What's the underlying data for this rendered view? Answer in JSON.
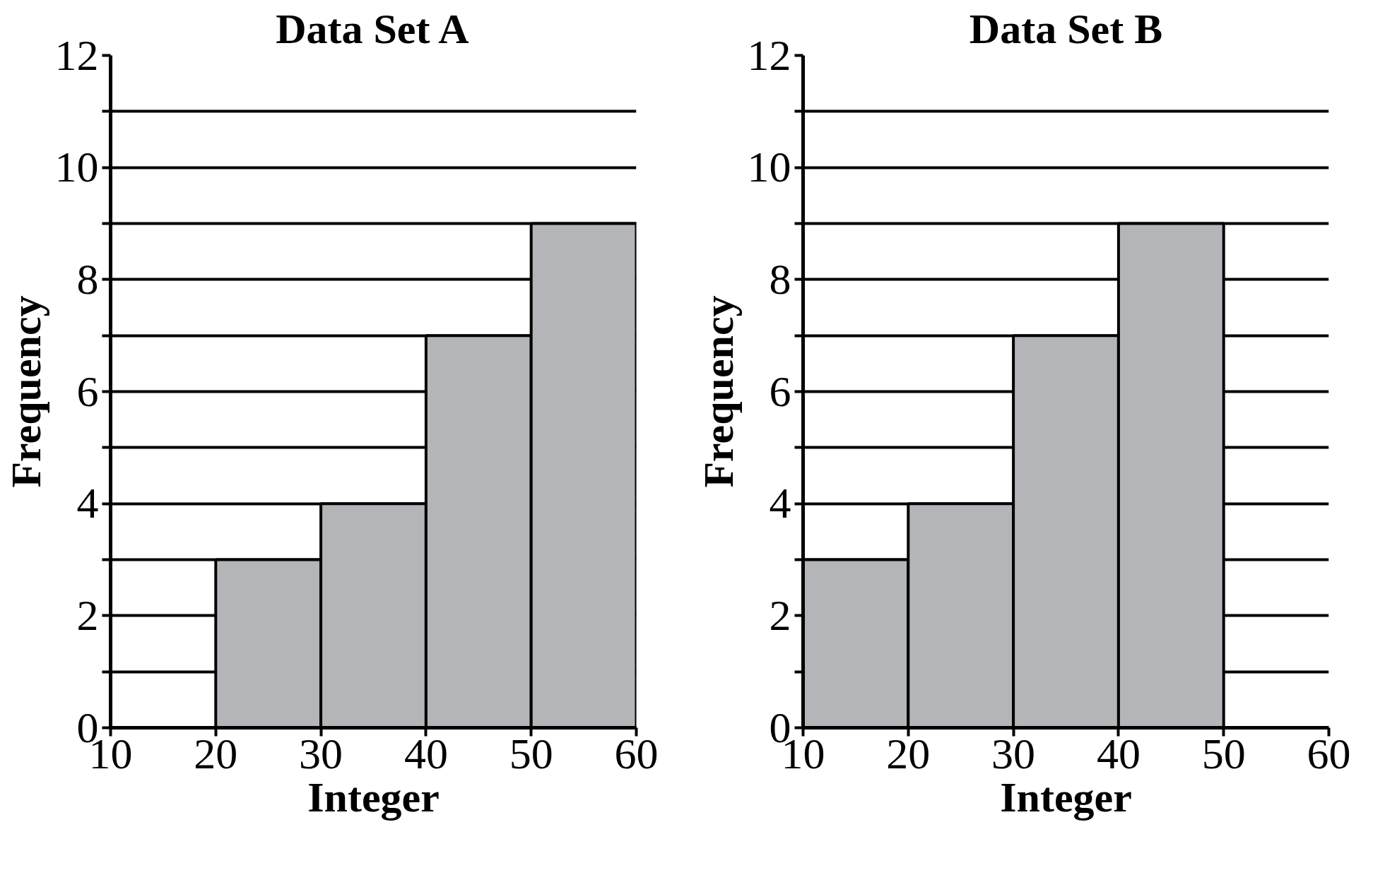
{
  "chart_data": [
    {
      "type": "histogram",
      "title": "Data Set A",
      "xlabel": "Integer",
      "ylabel": "Frequency",
      "bins": [
        10,
        20,
        30,
        40,
        50,
        60
      ],
      "values": [
        0,
        3,
        4,
        7,
        9
      ],
      "color": "#b4b5b9",
      "xlim": [
        10,
        60
      ],
      "xticks": [
        10,
        20,
        30,
        40,
        50,
        60
      ],
      "ylim": [
        0,
        12
      ],
      "yticks": [
        0,
        {
          "value": 1,
          "label": null
        },
        2,
        {
          "value": 3,
          "label": null
        },
        4,
        {
          "value": 5,
          "label": null
        },
        6,
        {
          "value": 7,
          "label": null
        },
        8,
        {
          "value": 9,
          "label": null
        },
        10,
        {
          "value": 11,
          "label": null
        },
        12
      ],
      "grid": "y"
    },
    {
      "type": "histogram",
      "title": "Data Set B",
      "xlabel": "Integer",
      "ylabel": "Frequency",
      "bins": [
        10,
        20,
        30,
        40,
        50,
        60
      ],
      "values": [
        3,
        4,
        7,
        9,
        0
      ],
      "color": "#b4b5b9",
      "xlim": [
        10,
        60
      ],
      "xticks": [
        10,
        20,
        30,
        40,
        50,
        60
      ],
      "ylim": [
        0,
        12
      ],
      "yticks": [
        0,
        {
          "value": 1,
          "label": null
        },
        2,
        {
          "value": 3,
          "label": null
        },
        4,
        {
          "value": 5,
          "label": null
        },
        6,
        {
          "value": 7,
          "label": null
        },
        8,
        {
          "value": 9,
          "label": null
        },
        10,
        {
          "value": 11,
          "label": null
        },
        12
      ],
      "grid": "y"
    }
  ]
}
